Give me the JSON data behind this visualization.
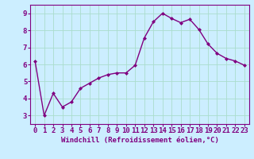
{
  "x": [
    0,
    1,
    2,
    3,
    4,
    5,
    6,
    7,
    8,
    9,
    10,
    11,
    12,
    13,
    14,
    15,
    16,
    17,
    18,
    19,
    20,
    21,
    22,
    23
  ],
  "y": [
    6.2,
    3.0,
    4.3,
    3.5,
    3.8,
    4.6,
    4.9,
    5.2,
    5.4,
    5.5,
    5.5,
    5.95,
    7.55,
    8.5,
    9.0,
    8.7,
    8.45,
    8.65,
    8.05,
    7.2,
    6.65,
    6.35,
    6.2,
    5.95
  ],
  "line_color": "#800080",
  "marker": "D",
  "marker_size": 2.0,
  "bg_color": "#cceeff",
  "grid_color": "#aaddcc",
  "xlabel": "Windchill (Refroidissement éolien,°C)",
  "xlim": [
    -0.5,
    23.5
  ],
  "ylim": [
    2.5,
    9.5
  ],
  "yticks": [
    3,
    4,
    5,
    6,
    7,
    8,
    9
  ],
  "xticks": [
    0,
    1,
    2,
    3,
    4,
    5,
    6,
    7,
    8,
    9,
    10,
    11,
    12,
    13,
    14,
    15,
    16,
    17,
    18,
    19,
    20,
    21,
    22,
    23
  ],
  "tick_fontsize": 6.5,
  "xlabel_fontsize": 6.5,
  "label_color": "#800080",
  "linewidth": 1.0
}
